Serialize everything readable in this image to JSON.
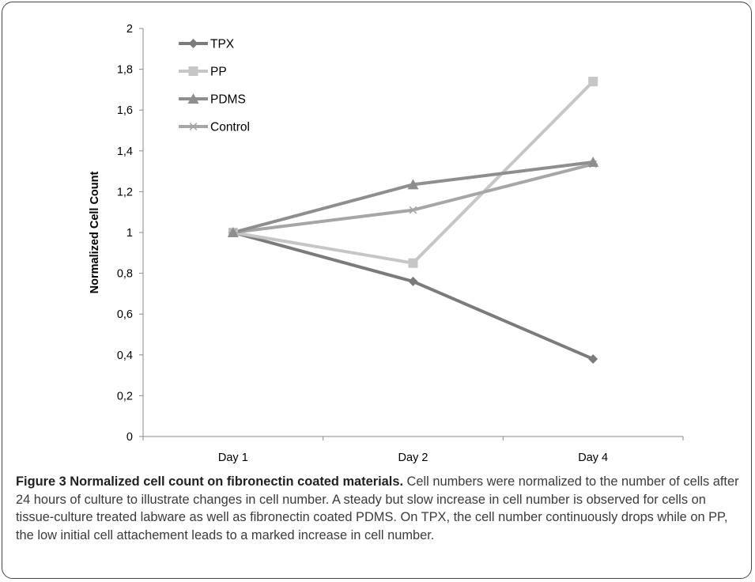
{
  "chart_data": {
    "type": "line",
    "categories": [
      "Day 1",
      "Day 2",
      "Day 4"
    ],
    "ylabel": "Normalized Cell Count",
    "xlabel": "",
    "ylim": [
      0,
      2
    ],
    "yticks": [
      "0",
      "0,2",
      "0,4",
      "0,6",
      "0,8",
      "1",
      "1,2",
      "1,4",
      "1,6",
      "1,8",
      "2"
    ],
    "grid": false,
    "legend": "top-left",
    "series": [
      {
        "name": "TPX",
        "values": [
          1.0,
          0.76,
          0.38
        ],
        "color": "#7b7b7b",
        "marker": "diamond"
      },
      {
        "name": "PP",
        "values": [
          1.0,
          0.85,
          1.74
        ],
        "color": "#c6c6c6",
        "marker": "square"
      },
      {
        "name": "PDMS",
        "values": [
          1.0,
          1.235,
          1.345
        ],
        "color": "#8e8e8e",
        "marker": "triangle"
      },
      {
        "name": "Control",
        "values": [
          1.0,
          1.11,
          1.335
        ],
        "color": "#a6a6a6",
        "marker": "star"
      }
    ]
  },
  "caption": {
    "lead": "Figure 3 Normalized cell count on fibronectin coated materials.",
    "body": " Cell numbers were normalized to the number of cells after 24 hours of culture to illustrate changes in cell number. A steady but slow increase in cell number is observed for cells on tissue-culture treated labware as well as fibronectin coated PDMS. On TPX, the cell number continuously drops while on PP, the low initial cell attachement leads to a marked increase in cell number."
  }
}
